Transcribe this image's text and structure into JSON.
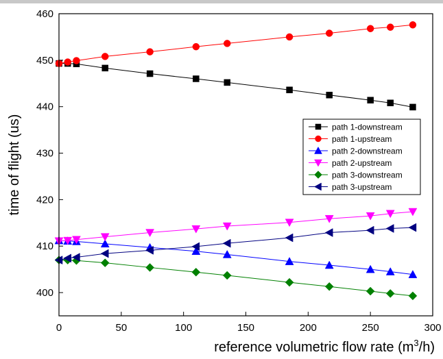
{
  "chart_data": {
    "type": "line",
    "xlabel": "reference volumetric flow rate (m",
    "xlabel_sup": "3",
    "xlabel_tail": "/h)",
    "ylabel": "time of flight (us)",
    "xlim": [
      0,
      300
    ],
    "ylim": [
      395,
      460
    ],
    "xticks": [
      0,
      50,
      100,
      150,
      200,
      250,
      300
    ],
    "yticks": [
      400,
      410,
      420,
      430,
      440,
      450,
      460
    ],
    "grid": false,
    "legend_position": "right-middle",
    "x": [
      0,
      7,
      14,
      37,
      73,
      110,
      135,
      185,
      217,
      250,
      266,
      284
    ],
    "series": [
      {
        "name": "path 1-downstream",
        "color": "#000000",
        "marker": "square",
        "values": [
          449.3,
          449.3,
          449.2,
          448.3,
          447.1,
          446.0,
          445.2,
          443.6,
          442.5,
          441.4,
          440.8,
          439.9
        ]
      },
      {
        "name": "path 1-upstream",
        "color": "#ff0000",
        "marker": "circle",
        "values": [
          449.3,
          449.6,
          449.9,
          450.8,
          451.8,
          452.9,
          453.6,
          455.0,
          455.8,
          456.8,
          457.1,
          457.6
        ]
      },
      {
        "name": "path 2-downstream",
        "color": "#0000ff",
        "marker": "triangle-up",
        "values": [
          411.2,
          411.1,
          411.0,
          410.5,
          409.7,
          408.9,
          408.2,
          406.7,
          405.9,
          405.0,
          404.5,
          403.9
        ]
      },
      {
        "name": "path 2-upstream",
        "color": "#ff00ff",
        "marker": "triangle-down",
        "values": [
          411.1,
          411.2,
          411.4,
          412.0,
          412.9,
          413.7,
          414.3,
          415.1,
          415.9,
          416.5,
          417.0,
          417.4
        ]
      },
      {
        "name": "path 3-downstream",
        "color": "#008000",
        "marker": "diamond",
        "values": [
          407.0,
          407.0,
          406.9,
          406.4,
          405.4,
          404.4,
          403.7,
          402.2,
          401.3,
          400.3,
          399.8,
          399.3
        ]
      },
      {
        "name": "path 3-upstream",
        "color": "#000080",
        "marker": "triangle-left",
        "values": [
          407.0,
          407.4,
          407.6,
          408.4,
          409.1,
          409.9,
          410.6,
          411.8,
          412.9,
          413.4,
          413.8,
          414.0
        ]
      }
    ]
  }
}
